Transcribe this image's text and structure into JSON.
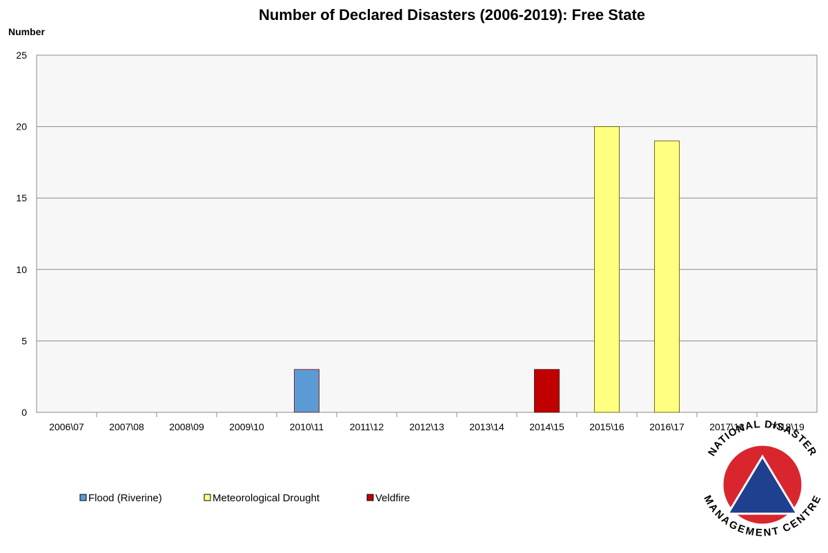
{
  "chart_data": {
    "type": "bar",
    "title": "Number of Declared Disasters (2006-2019): Free State",
    "ylabel": "Number",
    "xlabel": "",
    "ylim": [
      0,
      25
    ],
    "yticks": [
      0,
      5,
      10,
      15,
      20,
      25
    ],
    "grid": true,
    "legend_position": "bottom-left",
    "categories": [
      "2006\\07",
      "2007\\08",
      "2008\\09",
      "2009\\10",
      "2010\\11",
      "2011\\12",
      "2012\\13",
      "2013\\14",
      "2014\\15",
      "2015\\16",
      "2016\\17",
      "2017\\18",
      "2018\\19"
    ],
    "series": [
      {
        "name": "Flood (Riverine)",
        "color": "#5B9BD5",
        "values": [
          0,
          0,
          0,
          0,
          3,
          0,
          0,
          0,
          0,
          0,
          0,
          0,
          0
        ]
      },
      {
        "name": "Meteorological Drought",
        "color": "#FFFF80",
        "values": [
          0,
          0,
          0,
          0,
          0,
          0,
          0,
          0,
          0,
          20,
          19,
          0,
          0
        ]
      },
      {
        "name": "Veldfire",
        "color": "#C00000",
        "values": [
          0,
          0,
          0,
          0,
          0,
          0,
          0,
          0,
          3,
          0,
          0,
          0,
          0
        ]
      }
    ]
  },
  "logo": {
    "top_text": "NATIONAL DISASTER",
    "bottom_text": "MANAGEMENT CENTRE",
    "ring_color": "#D9262E",
    "triangle_color": "#1F3F8F"
  }
}
